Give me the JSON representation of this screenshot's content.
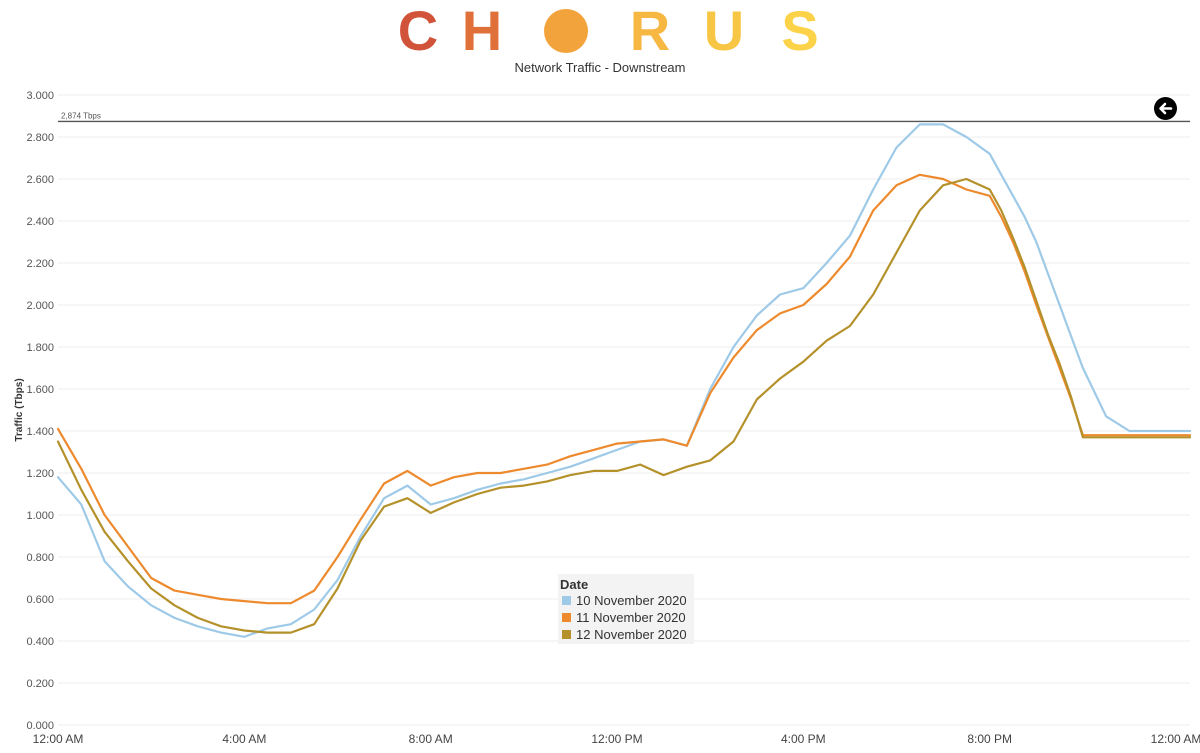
{
  "brand": {
    "logo_letters": [
      {
        "char": "C",
        "color": "#d1533a"
      },
      {
        "char": "H",
        "color": "#e0703a"
      },
      {
        "char": "O",
        "color": "#f3a33c",
        "shape": "filled-circle"
      },
      {
        "char": "R",
        "color": "#f6b843"
      },
      {
        "char": "U",
        "color": "#f8c645"
      },
      {
        "char": "S",
        "color": "#fbd248"
      }
    ]
  },
  "subtitle": "Network Traffic - Downstream",
  "back_button": {
    "icon": "arrow-left-circle-icon"
  },
  "legend": {
    "title": "Date",
    "items": [
      {
        "label": "10 November 2020",
        "color": "#9ecae8"
      },
      {
        "label": "11 November 2020",
        "color": "#ed8a2d"
      },
      {
        "label": "12 November 2020",
        "color": "#b4912a"
      }
    ]
  },
  "chart_data": {
    "type": "line",
    "title": "Network Traffic - Downstream",
    "ylabel": "Traffic (Tbps)",
    "xlabel": "",
    "ylim": [
      0,
      3.0
    ],
    "xlim": [
      0,
      24.3
    ],
    "x_unit": "hours since 12:00 AM",
    "y_ticks": [
      "0.000",
      "0.200",
      "0.400",
      "0.600",
      "0.800",
      "1.000",
      "1.200",
      "1.400",
      "1.600",
      "1.800",
      "2.000",
      "2.200",
      "2.400",
      "2.600",
      "2.800",
      "3.000"
    ],
    "y_tick_values": [
      0,
      0.2,
      0.4,
      0.6,
      0.8,
      1.0,
      1.2,
      1.4,
      1.6,
      1.8,
      2.0,
      2.2,
      2.4,
      2.6,
      2.8,
      3.0
    ],
    "x_ticks": [
      "12:00 AM",
      "4:00 AM",
      "8:00 AM",
      "12:00 PM",
      "4:00 PM",
      "8:00 PM",
      "12:00 AM"
    ],
    "x_tick_values": [
      0,
      4,
      8,
      12,
      16,
      20,
      24
    ],
    "grid": true,
    "legend_position": "center-bottom",
    "reference_line": {
      "value": 2.874,
      "label": "2,874 Tbps"
    },
    "x": [
      0,
      0.5,
      1,
      1.5,
      2,
      2.5,
      3,
      3.5,
      4,
      4.5,
      5,
      5.5,
      6,
      6.5,
      7,
      7.5,
      8,
      8.5,
      9,
      9.5,
      10,
      10.5,
      11,
      11.5,
      12,
      12.5,
      13,
      13.5,
      14,
      14.5,
      15,
      15.5,
      16,
      16.5,
      17,
      17.5,
      18,
      18.5,
      19,
      19.5,
      20,
      20.25,
      20.5,
      20.75,
      21,
      21.25,
      21.5,
      21.75,
      22,
      22.5,
      23,
      23.5,
      24,
      24.3
    ],
    "series": [
      {
        "name": "10 November 2020",
        "color": "#9ecae8",
        "values": [
          1.18,
          1.05,
          0.78,
          0.66,
          0.57,
          0.51,
          0.47,
          0.44,
          0.42,
          0.46,
          0.48,
          0.55,
          0.69,
          0.9,
          1.08,
          1.14,
          1.05,
          1.08,
          1.12,
          1.15,
          1.17,
          1.2,
          1.23,
          1.27,
          1.31,
          1.35,
          1.36,
          1.33,
          1.6,
          1.8,
          1.95,
          2.05,
          2.08,
          2.2,
          2.33,
          2.55,
          2.75,
          2.86,
          2.86,
          2.8,
          2.72,
          2.62,
          2.52,
          2.42,
          2.3,
          2.15,
          2.0,
          1.85,
          1.7,
          1.47,
          1.4,
          1.4,
          1.4,
          1.4
        ]
      },
      {
        "name": "11 November 2020",
        "color": "#ed8a2d",
        "values": [
          1.41,
          1.22,
          1.0,
          0.85,
          0.7,
          0.64,
          0.62,
          0.6,
          0.59,
          0.58,
          0.58,
          0.64,
          0.8,
          0.98,
          1.15,
          1.21,
          1.14,
          1.18,
          1.2,
          1.2,
          1.22,
          1.24,
          1.28,
          1.31,
          1.34,
          1.35,
          1.36,
          1.33,
          1.58,
          1.75,
          1.88,
          1.96,
          2.0,
          2.1,
          2.23,
          2.45,
          2.57,
          2.62,
          2.6,
          2.55,
          2.52,
          2.42,
          2.3,
          2.16,
          2.0,
          1.85,
          1.7,
          1.55,
          1.38,
          1.38,
          1.38,
          1.38,
          1.38,
          1.38
        ]
      },
      {
        "name": "12 November 2020",
        "color": "#b4912a",
        "values": [
          1.35,
          1.12,
          0.92,
          0.78,
          0.65,
          0.57,
          0.51,
          0.47,
          0.45,
          0.44,
          0.44,
          0.48,
          0.65,
          0.88,
          1.04,
          1.08,
          1.01,
          1.06,
          1.1,
          1.13,
          1.14,
          1.16,
          1.19,
          1.21,
          1.21,
          1.24,
          1.19,
          1.23,
          1.26,
          1.35,
          1.55,
          1.65,
          1.73,
          1.83,
          1.9,
          2.05,
          2.25,
          2.45,
          2.57,
          2.6,
          2.55,
          2.45,
          2.32,
          2.18,
          2.02,
          1.86,
          1.72,
          1.56,
          1.37,
          1.37,
          1.37,
          1.37,
          1.37,
          1.37
        ]
      }
    ]
  }
}
